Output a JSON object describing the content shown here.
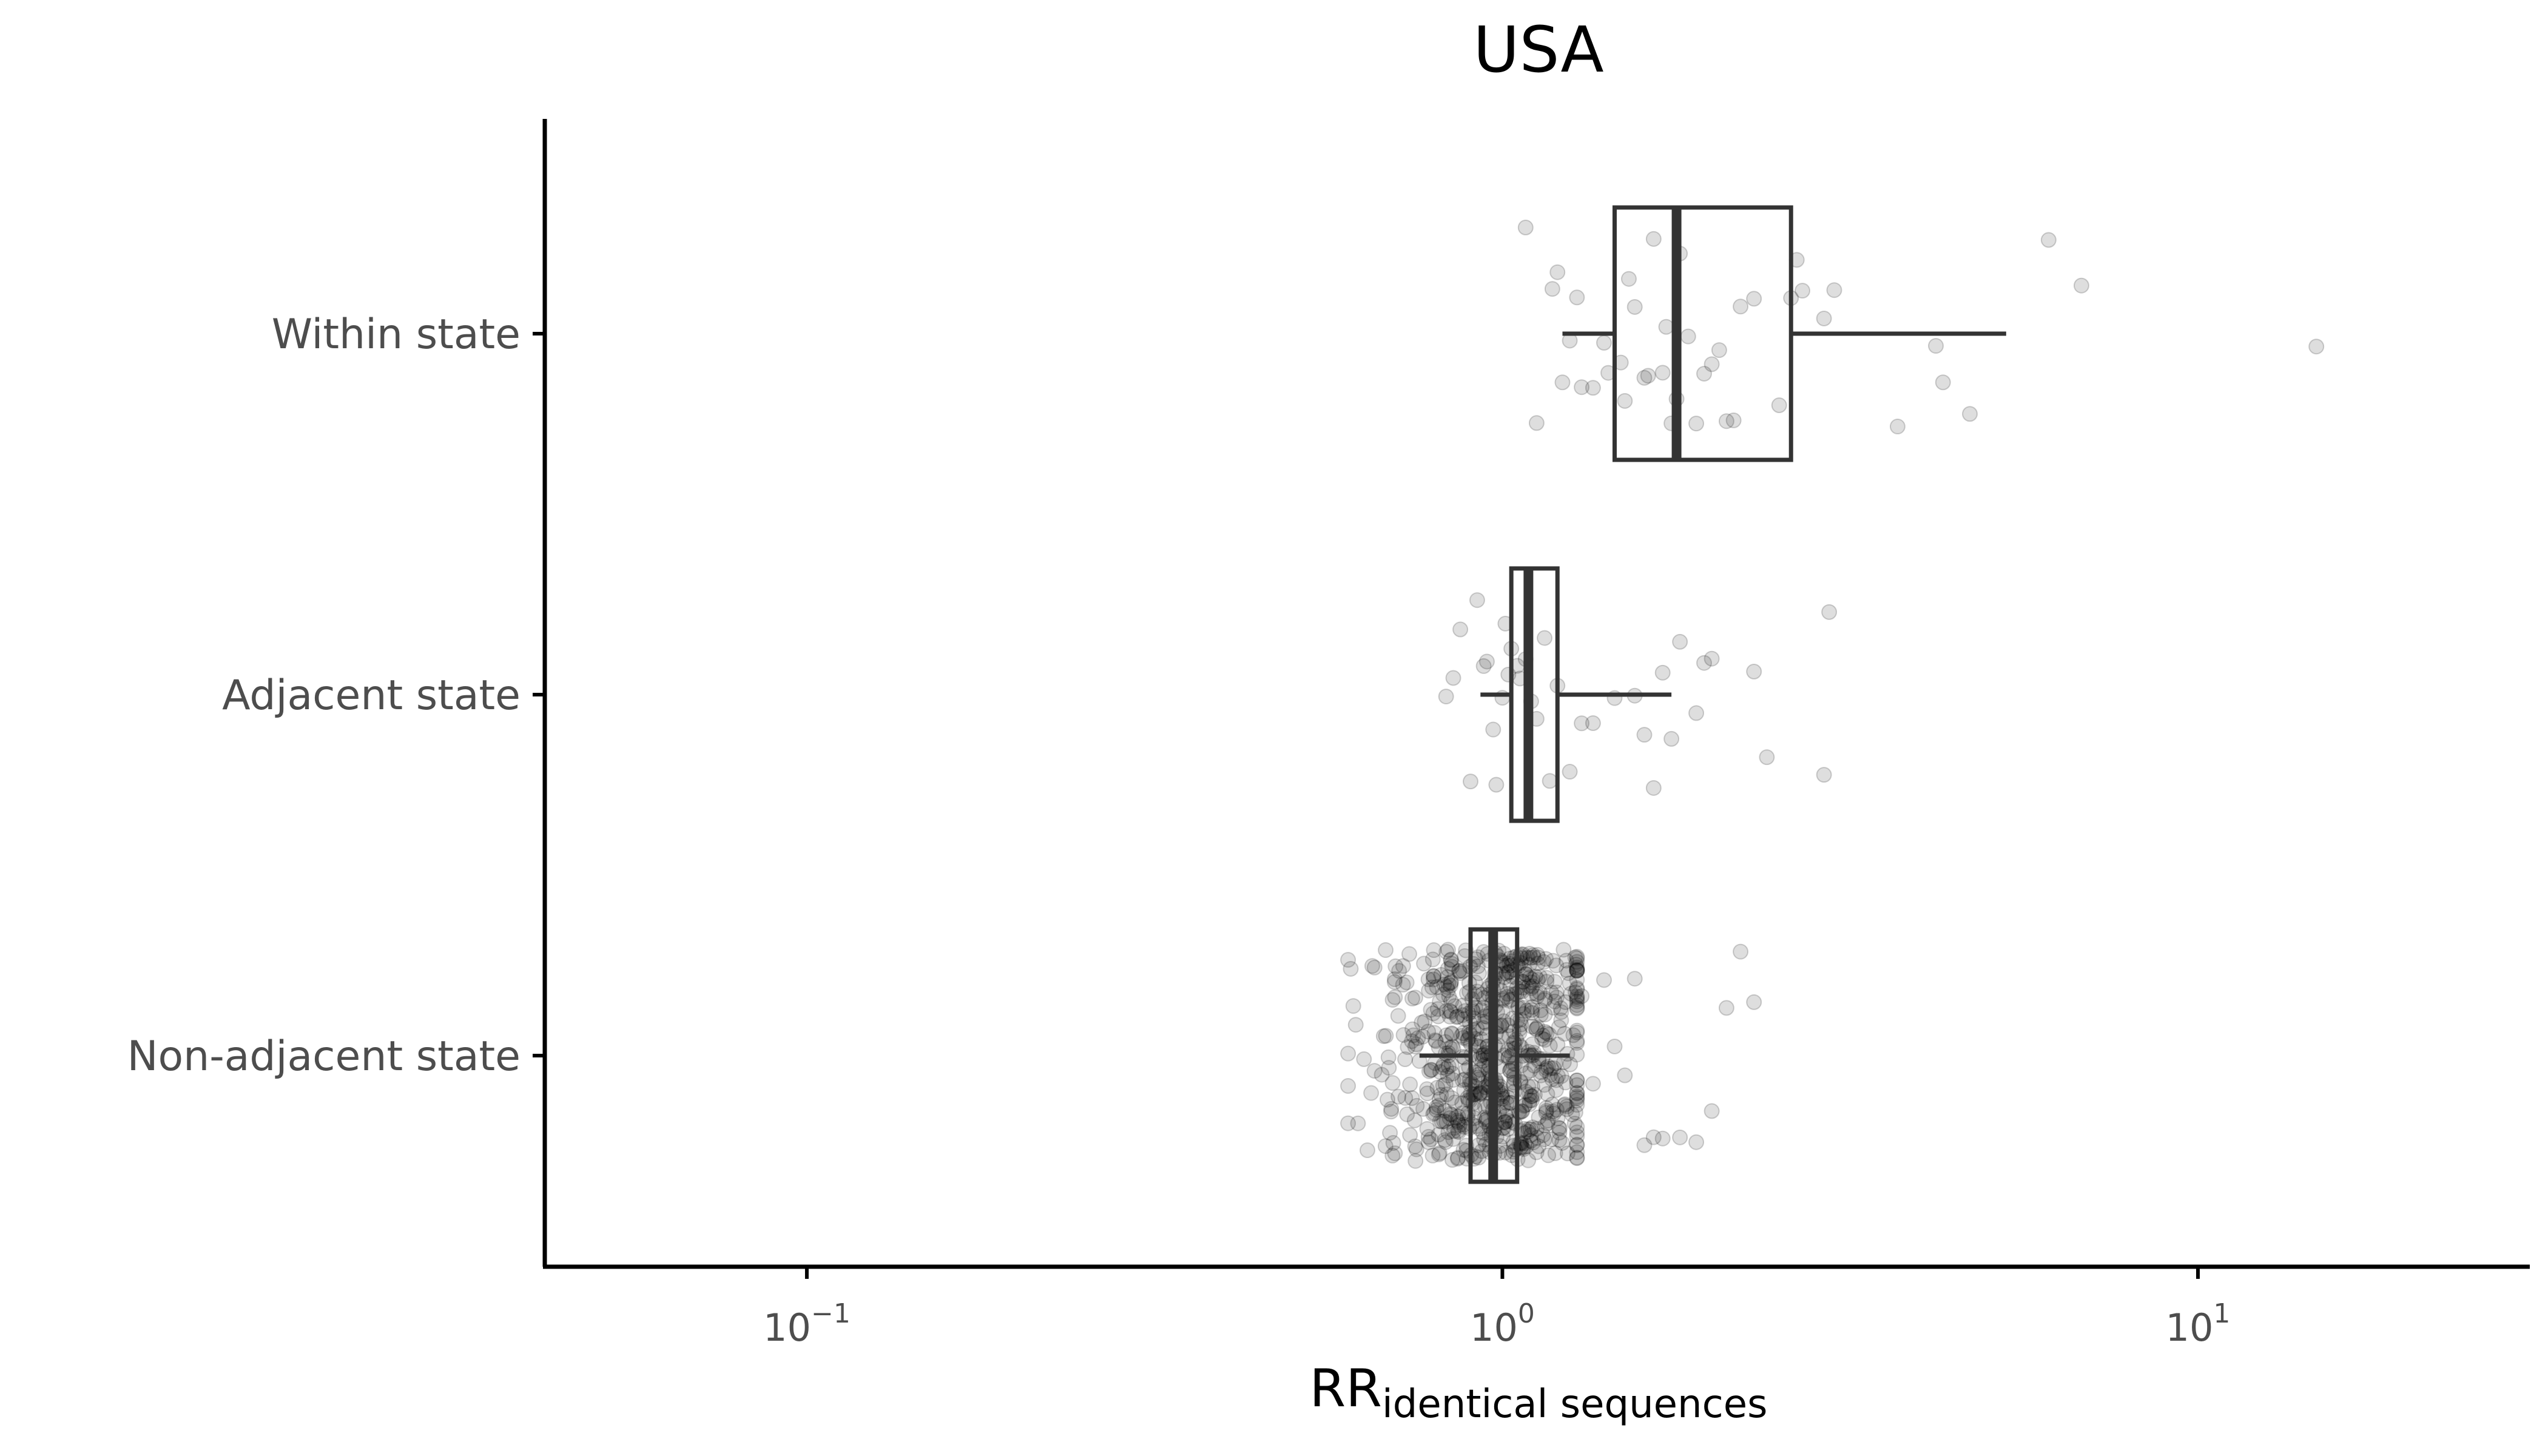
{
  "chart_data": {
    "type": "boxplot",
    "title": "USA",
    "orientation": "horizontal",
    "xlabel": "RR",
    "xlabel_subscript": "identical sequences",
    "ylabel": "",
    "x_scale": "log10",
    "xlim": [
      0.042,
      30
    ],
    "x_ticks": [
      {
        "value": 0.1,
        "base": "10",
        "exp": "−1"
      },
      {
        "value": 1,
        "base": "10",
        "exp": "0"
      },
      {
        "value": 10,
        "base": "10",
        "exp": "1"
      }
    ],
    "grid": false,
    "legend": "none",
    "colors": {
      "box": "#333333",
      "point": "#000000",
      "axis": "#000000",
      "tick_text": "#4d4d4d"
    },
    "categories": [
      "Within state",
      "Adjacent state",
      "Non-adjacent state"
    ],
    "boxes": [
      {
        "category": "Within state",
        "whisker_low": 1.22,
        "q1": 1.45,
        "median": 1.78,
        "q3": 2.6,
        "whisker_high": 5.3
      },
      {
        "category": "Adjacent state",
        "whisker_low": 0.93,
        "q1": 1.03,
        "median": 1.09,
        "q3": 1.2,
        "whisker_high": 1.75
      },
      {
        "category": "Non-adjacent state",
        "whisker_low": 0.76,
        "q1": 0.9,
        "median": 0.97,
        "q3": 1.05,
        "whisker_high": 1.25
      }
    ],
    "points": {
      "Within state": [
        1.08,
        1.12,
        1.18,
        1.2,
        1.22,
        1.25,
        1.28,
        1.3,
        1.35,
        1.4,
        1.42,
        1.48,
        1.5,
        1.52,
        1.55,
        1.6,
        1.62,
        1.65,
        1.7,
        1.72,
        1.75,
        1.78,
        1.8,
        1.85,
        1.9,
        1.95,
        2.0,
        2.05,
        2.1,
        2.15,
        2.2,
        2.3,
        2.5,
        2.6,
        2.65,
        2.7,
        2.9,
        3.0,
        3.7,
        4.2,
        4.3,
        4.7,
        6.1,
        6.8,
        14.8
      ],
      "Adjacent state": [
        0.83,
        0.85,
        0.87,
        0.9,
        0.92,
        0.94,
        0.95,
        0.97,
        0.98,
        1.0,
        1.01,
        1.02,
        1.03,
        1.05,
        1.06,
        1.08,
        1.1,
        1.12,
        1.15,
        1.17,
        1.2,
        1.25,
        1.3,
        1.35,
        1.45,
        1.55,
        1.6,
        1.65,
        1.7,
        1.75,
        1.8,
        1.9,
        1.95,
        2.0,
        2.3,
        2.4,
        2.9,
        2.95
      ],
      "Non-adjacent state": [
        0.62,
        0.65,
        0.68,
        0.7,
        0.72,
        0.75,
        1.3,
        1.35,
        1.4,
        1.45,
        1.5,
        1.55,
        1.6,
        1.65,
        1.7,
        1.8,
        1.9,
        2.0,
        2.1,
        2.2,
        2.3
      ]
    },
    "n_dense_points_nonadjacent": 700
  }
}
